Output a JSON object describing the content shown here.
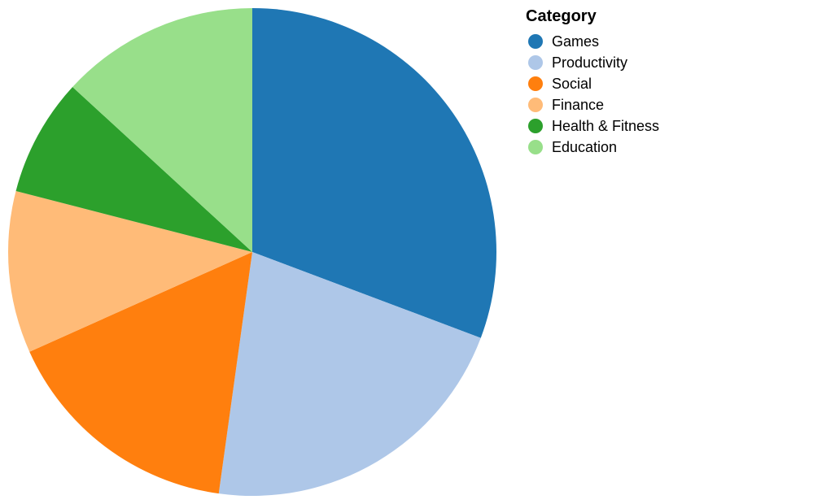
{
  "chart_data": {
    "type": "pie",
    "title": "",
    "legend": {
      "title": "Category",
      "placement": "top-right"
    },
    "slices": [
      {
        "label": "Games",
        "value": 31.5,
        "color": "#1f77b4"
      },
      {
        "label": "Productivity",
        "value": 22.0,
        "color": "#aec7e8"
      },
      {
        "label": "Social",
        "value": 16.5,
        "color": "#ff7f0e"
      },
      {
        "label": "Finance",
        "value": 11.0,
        "color": "#ffbb78"
      },
      {
        "label": "Health & Fitness",
        "value": 8.0,
        "color": "#2ca02c"
      },
      {
        "label": "Education",
        "value": 13.5,
        "color": "#98df8a"
      }
    ]
  }
}
